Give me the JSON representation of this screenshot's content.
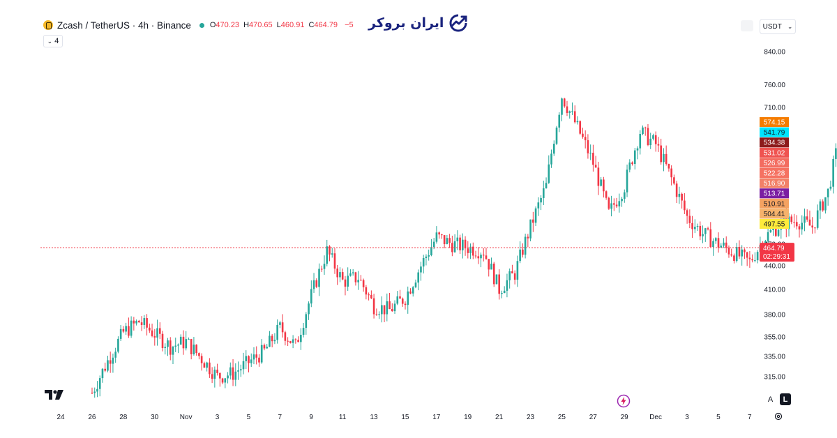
{
  "header": {
    "symbol": "Zcash / TetherUS · 4h · Binance",
    "o_label": "O",
    "o_value": "470.23",
    "h_label": "H",
    "h_value": "470.65",
    "l_label": "L",
    "l_value": "460.91",
    "c_label": "C",
    "c_value": "464.79",
    "change": "−5",
    "indicator_count": "4"
  },
  "brand": {
    "name": "ایران بروکر"
  },
  "currency": {
    "label": "USDT"
  },
  "buttons": {
    "auto_label": "A",
    "log_label": "L"
  },
  "colors": {
    "up": "#26a69a",
    "down": "#f23645",
    "last_line": "#f23645"
  },
  "chart_data": {
    "type": "candlestick",
    "timeframe": "4h",
    "y_scale": "log",
    "y_ticks": [
      840,
      760,
      710,
      470,
      440,
      410,
      380,
      355,
      335,
      315
    ],
    "y_tick_labels": [
      "840.00",
      "760.00",
      "710.00",
      "470.00",
      "440.00",
      "410.00",
      "380.00",
      "355.00",
      "335.00",
      "315.00"
    ],
    "x_tick_labels": [
      "24",
      "26",
      "28",
      "30",
      "Nov",
      "3",
      "5",
      "7",
      "9",
      "11",
      "13",
      "15",
      "17",
      "19",
      "21",
      "23",
      "25",
      "27",
      "29",
      "Dec",
      "3",
      "5",
      "7"
    ],
    "last_price": "464.79",
    "countdown": "02:29:31",
    "price_badges": [
      {
        "value": "574.15",
        "color": "#f57c00",
        "text": "#ffffff"
      },
      {
        "value": "541.79",
        "color": "#00e5ff",
        "text": "#131722"
      },
      {
        "value": "534.38",
        "color": "#8d1b1b",
        "text": "#ffffff"
      },
      {
        "value": "531.02",
        "color": "#ef5350",
        "text": "#ffffff"
      },
      {
        "value": "526.99",
        "color": "#f36c60",
        "text": "#ffffff"
      },
      {
        "value": "522.28",
        "color": "#f57262",
        "text": "#ffffff"
      },
      {
        "value": "516.90",
        "color": "#f28068",
        "text": "#ffffff"
      },
      {
        "value": "513.71",
        "color": "#7b1fa2",
        "text": "#ffffff"
      },
      {
        "value": "510.91",
        "color": "#f4a261",
        "text": "#131722"
      },
      {
        "value": "504.41",
        "color": "#f6b26b",
        "text": "#131722"
      },
      {
        "value": "497.55",
        "color": "#ffeb3b",
        "text": "#131722"
      }
    ],
    "anchors": [
      [
        0,
        300
      ],
      [
        2,
        360
      ],
      [
        3,
        372
      ],
      [
        5,
        345
      ],
      [
        6,
        350
      ],
      [
        8,
        315
      ],
      [
        9,
        318
      ],
      [
        11,
        340
      ],
      [
        12,
        365
      ],
      [
        13,
        345
      ],
      [
        15,
        460
      ],
      [
        16,
        420
      ],
      [
        17,
        425
      ],
      [
        18,
        390
      ],
      [
        19,
        385
      ],
      [
        20,
        400
      ],
      [
        22,
        480
      ],
      [
        23,
        470
      ],
      [
        25,
        460
      ],
      [
        26,
        410
      ],
      [
        27,
        430
      ],
      [
        29,
        560
      ],
      [
        30,
        735
      ],
      [
        32,
        600
      ],
      [
        33,
        515
      ],
      [
        34,
        560
      ],
      [
        35,
        660
      ],
      [
        36,
        635
      ],
      [
        38,
        510
      ],
      [
        39,
        485
      ],
      [
        40,
        470
      ],
      [
        42,
        445
      ],
      [
        43,
        480
      ],
      [
        44,
        500
      ],
      [
        45,
        505
      ],
      [
        46,
        495
      ],
      [
        47,
        550
      ],
      [
        48,
        680
      ],
      [
        49,
        650
      ],
      [
        50,
        700
      ],
      [
        51,
        675
      ],
      [
        52,
        690
      ],
      [
        53,
        640
      ],
      [
        54,
        620
      ],
      [
        55,
        585
      ],
      [
        56,
        600
      ],
      [
        57,
        660
      ],
      [
        58,
        680
      ],
      [
        59,
        665
      ],
      [
        60,
        660
      ],
      [
        61,
        630
      ],
      [
        62,
        545
      ],
      [
        63,
        520
      ],
      [
        64,
        500
      ],
      [
        65,
        580
      ],
      [
        66,
        595
      ],
      [
        67,
        575
      ],
      [
        68,
        555
      ],
      [
        69,
        545
      ],
      [
        70,
        500
      ],
      [
        71,
        495
      ],
      [
        72,
        505
      ],
      [
        73,
        515
      ],
      [
        74,
        508
      ],
      [
        75,
        492
      ],
      [
        76,
        480
      ],
      [
        77,
        466
      ],
      [
        78,
        462
      ]
    ]
  }
}
